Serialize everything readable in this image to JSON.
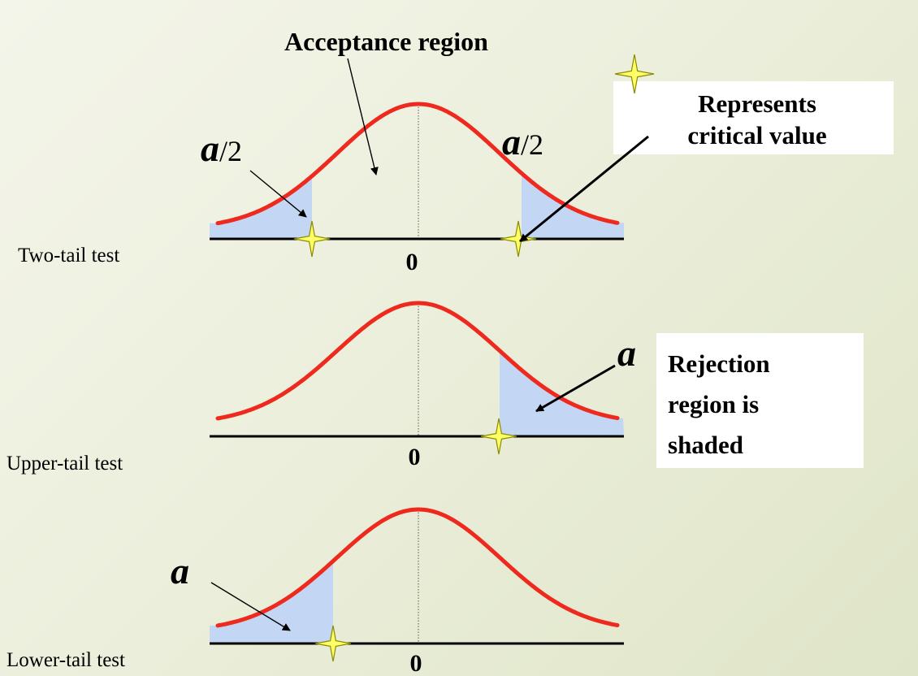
{
  "annotations": {
    "acceptance_region": "Acceptance region",
    "critical_value_line1": "Represents",
    "critical_value_line2": "critical value",
    "rejection_line1": "Rejection",
    "rejection_line2": "region is",
    "rejection_line3": "shaded"
  },
  "panels": [
    {
      "label": "Two-tail test",
      "zero": "0",
      "left_alpha": "a",
      "left_suffix": "/2",
      "right_alpha": "a",
      "right_suffix": "/2"
    },
    {
      "label": "Upper-tail test",
      "zero": "0",
      "alpha": "a"
    },
    {
      "label": "Lower-tail test",
      "zero": "0",
      "alpha": "a"
    }
  ],
  "colors": {
    "curve": "#ee2a1f",
    "shade": "#c3d6f4",
    "star_fill": "#ffff66",
    "star_stroke": "#8a8a00",
    "axis": "#000000",
    "box": "#ffffff"
  }
}
